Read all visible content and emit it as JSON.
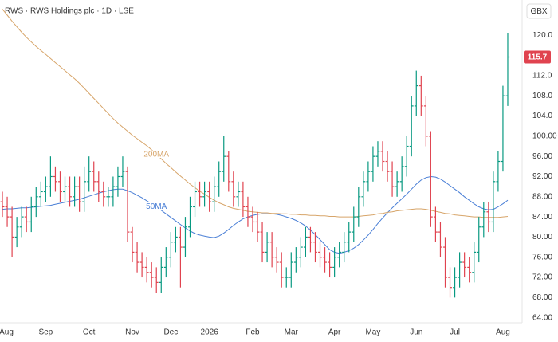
{
  "chart_data": {
    "type": "ohlc",
    "title": "RWS · RWS Holdings plc · 1D · LSE",
    "currency": "GBX",
    "up_color": "#089981",
    "down_color": "#e0434f",
    "grid": false,
    "categories": [
      "Aug",
      null,
      null,
      null,
      null,
      null,
      null,
      null,
      null,
      "Sep",
      null,
      null,
      null,
      null,
      null,
      null,
      null,
      null,
      "Oct",
      null,
      null,
      null,
      null,
      null,
      null,
      null,
      null,
      "Nov",
      null,
      null,
      null,
      null,
      null,
      null,
      null,
      "Dec",
      null,
      null,
      null,
      null,
      null,
      null,
      null,
      "2026",
      null,
      null,
      null,
      null,
      null,
      null,
      null,
      null,
      "Feb",
      null,
      null,
      null,
      null,
      null,
      null,
      null,
      "Mar",
      null,
      null,
      null,
      null,
      null,
      null,
      null,
      null,
      "Apr",
      null,
      null,
      null,
      null,
      null,
      null,
      null,
      "May",
      null,
      null,
      null,
      null,
      null,
      null,
      null,
      null,
      "Jun",
      null,
      null,
      null,
      null,
      null,
      null,
      null,
      "Jul",
      null,
      null,
      null,
      null,
      null,
      null,
      null,
      null,
      null,
      "Aug",
      null
    ],
    "open": [
      87,
      86,
      84,
      80,
      82,
      84,
      83,
      86,
      88,
      89,
      90,
      92,
      91,
      89,
      90,
      88,
      90,
      87,
      91,
      93,
      91,
      89,
      88,
      88,
      90,
      92,
      93,
      81,
      77,
      75,
      74,
      73,
      72,
      71,
      74,
      76,
      79,
      80,
      78,
      82,
      86,
      89,
      88,
      89,
      87,
      90,
      93,
      96,
      91,
      88,
      89,
      86,
      84,
      83,
      81,
      77,
      79,
      76,
      75,
      72,
      72,
      75,
      76,
      78,
      80,
      79,
      77,
      76,
      75,
      74,
      76,
      77,
      79,
      81,
      84,
      88,
      91,
      93,
      96,
      97,
      95,
      93,
      90,
      91,
      94,
      98,
      106,
      110,
      106,
      100,
      84,
      81,
      78,
      72,
      70,
      72,
      75,
      74,
      73,
      77,
      82,
      85,
      83,
      91,
      95,
      108
    ],
    "high": [
      89,
      88,
      86,
      84,
      86,
      86,
      88,
      90,
      91,
      92,
      96,
      94,
      93,
      92,
      92,
      92,
      92,
      94,
      96,
      95,
      93,
      91,
      90,
      92,
      94,
      96,
      94,
      82,
      79,
      77,
      76,
      75,
      74,
      76,
      78,
      81,
      82,
      82,
      84,
      88,
      91,
      91,
      91,
      91,
      92,
      95,
      100,
      97,
      93,
      91,
      91,
      88,
      86,
      85,
      83,
      81,
      81,
      78,
      77,
      74,
      77,
      78,
      80,
      82,
      82,
      81,
      79,
      78,
      77,
      78,
      79,
      81,
      83,
      86,
      90,
      93,
      95,
      98,
      99,
      99,
      97,
      95,
      93,
      96,
      100,
      108,
      113,
      112,
      108,
      101,
      86,
      83,
      80,
      74,
      74,
      77,
      77,
      76,
      79,
      84,
      87,
      87,
      93,
      97,
      110,
      120.5
    ],
    "low": [
      84,
      82,
      76,
      78,
      80,
      81,
      81,
      84,
      86,
      87,
      88,
      89,
      87,
      87,
      86,
      86,
      85,
      85,
      89,
      89,
      87,
      86,
      86,
      86,
      88,
      90,
      79,
      75,
      73,
      72,
      71,
      70,
      69,
      69,
      72,
      74,
      77,
      70,
      76,
      80,
      84,
      86,
      86,
      85,
      85,
      88,
      91,
      89,
      86,
      86,
      84,
      82,
      81,
      79,
      75,
      75,
      74,
      73,
      70,
      70,
      70,
      73,
      74,
      76,
      77,
      75,
      74,
      73,
      72,
      72,
      74,
      75,
      77,
      79,
      82,
      86,
      89,
      91,
      94,
      93,
      91,
      88,
      88,
      89,
      92,
      96,
      104,
      104,
      98,
      82,
      79,
      76,
      70,
      68,
      68,
      70,
      72,
      71,
      71,
      75,
      80,
      81,
      81,
      89,
      93,
      106
    ],
    "close": [
      86,
      84,
      80,
      82,
      84,
      83,
      86,
      88,
      89,
      90,
      92,
      91,
      89,
      90,
      88,
      90,
      87,
      91,
      93,
      91,
      89,
      88,
      88,
      90,
      92,
      93,
      81,
      77,
      75,
      74,
      73,
      72,
      71,
      74,
      76,
      79,
      80,
      78,
      82,
      86,
      89,
      88,
      89,
      87,
      90,
      93,
      96,
      91,
      88,
      89,
      86,
      84,
      83,
      81,
      77,
      79,
      76,
      75,
      72,
      72,
      75,
      76,
      78,
      80,
      79,
      77,
      76,
      75,
      74,
      76,
      77,
      79,
      81,
      84,
      88,
      91,
      93,
      96,
      97,
      95,
      93,
      90,
      91,
      94,
      98,
      106,
      110,
      106,
      100,
      84,
      81,
      78,
      72,
      70,
      72,
      75,
      74,
      73,
      77,
      82,
      85,
      83,
      91,
      95,
      108,
      115.7
    ],
    "series": [
      {
        "name": "50MA",
        "color": "#4a7fd6",
        "values": [
          85.5,
          85.6,
          85.6,
          85.7,
          85.8,
          85.8,
          85.9,
          86,
          86.1,
          86.2,
          86.3,
          86.5,
          86.7,
          86.9,
          87.1,
          87.3,
          87.5,
          87.8,
          88.1,
          88.4,
          88.7,
          89,
          89.2,
          89.4,
          89.5,
          89.5,
          89.2,
          88.8,
          88.3,
          87.8,
          87.2,
          86.6,
          86,
          85.3,
          84.6,
          83.9,
          83.2,
          82.5,
          81.8,
          81.2,
          80.7,
          80.4,
          80.2,
          80,
          79.9,
          80.2,
          80.8,
          81.5,
          82.3,
          83,
          83.6,
          84,
          84.3,
          84.5,
          84.6,
          84.6,
          84.6,
          84.5,
          84.3,
          84,
          83.7,
          83.3,
          82.8,
          82.2,
          81.4,
          80.5,
          79.5,
          78.5,
          77.5,
          77,
          76.8,
          77,
          77.3,
          77.8,
          78.5,
          79.4,
          80.4,
          81.5,
          82.7,
          83.8,
          84.8,
          85.8,
          86.7,
          87.6,
          88.5,
          89.5,
          90.5,
          91.3,
          91.8,
          92,
          91.9,
          91.5,
          90.9,
          90.2,
          89.5,
          88.8,
          88,
          87.3,
          86.6,
          86,
          85.6,
          85.4,
          85.5,
          86,
          86.6,
          87.3
        ]
      },
      {
        "name": "200MA",
        "color": "#d7a56a",
        "values": [
          125.2,
          124,
          122.8,
          121.7,
          120.6,
          119.6,
          118.7,
          117.8,
          117,
          116.2,
          115.4,
          114.6,
          113.8,
          113,
          112.2,
          111.4,
          110.5,
          109.5,
          108.5,
          107.5,
          106.5,
          105.5,
          104.5,
          103.5,
          102.6,
          101.8,
          101,
          100.2,
          99.5,
          98.8,
          98.1,
          97.3,
          96.4,
          95.5,
          94.6,
          93.8,
          92.9,
          92.1,
          91.3,
          90.5,
          89.8,
          89.1,
          88.5,
          87.9,
          87.3,
          86.8,
          86.4,
          86,
          85.7,
          85.5,
          85.3,
          85.1,
          85,
          84.9,
          84.8,
          84.8,
          84.7,
          84.7,
          84.6,
          84.6,
          84.5,
          84.5,
          84.4,
          84.4,
          84.3,
          84.3,
          84.2,
          84.2,
          84.1,
          84.1,
          84,
          84,
          84,
          84,
          84.1,
          84.2,
          84.3,
          84.4,
          84.6,
          84.7,
          84.9,
          85,
          85.2,
          85.3,
          85.4,
          85.5,
          85.6,
          85.6,
          85.5,
          85.3,
          85.1,
          84.9,
          84.7,
          84.6,
          84.4,
          84.3,
          84.2,
          84.1,
          84,
          84,
          83.9,
          83.9,
          83.9,
          83.9,
          84,
          84.1
        ]
      }
    ],
    "ylim": [
      63,
      127
    ],
    "yticks": [
      {
        "value": 120,
        "label": "120.0"
      },
      {
        "value": 112,
        "label": "112.0"
      },
      {
        "value": 108,
        "label": "108.0"
      },
      {
        "value": 104,
        "label": "104.0"
      },
      {
        "value": 100,
        "label": "100.00"
      },
      {
        "value": 96,
        "label": "96.00"
      },
      {
        "value": 92,
        "label": "92.00"
      },
      {
        "value": 88,
        "label": "88.00"
      },
      {
        "value": 84,
        "label": "84.00"
      },
      {
        "value": 80,
        "label": "80.00"
      },
      {
        "value": 76,
        "label": "76.00"
      },
      {
        "value": 72,
        "label": "72.00"
      },
      {
        "value": 68,
        "label": "68.00"
      },
      {
        "value": 64,
        "label": "64.00"
      }
    ]
  }
}
